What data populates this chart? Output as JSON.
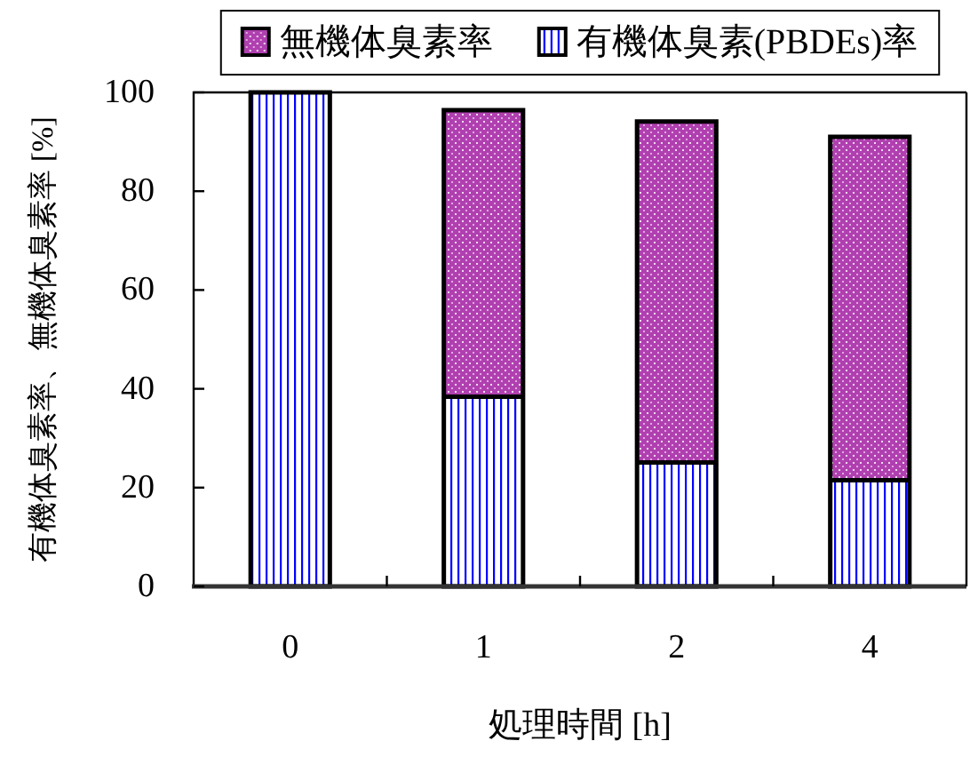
{
  "chart_data": {
    "type": "bar",
    "stacked": true,
    "categories": [
      "0",
      "1",
      "2",
      "4"
    ],
    "xlabel": "処理時間 [h]",
    "ylabel": "有機体臭素率、無機体臭素率 [%]",
    "ylim": [
      0,
      100
    ],
    "yticks": [
      0,
      20,
      40,
      60,
      80,
      100
    ],
    "series": [
      {
        "name": "有機体臭素(PBDEs)率",
        "color": "#0000ff",
        "values": [
          100,
          38.4,
          25.1,
          21.5
        ]
      },
      {
        "name": "無機体臭素率",
        "color": "#b040b0",
        "values": [
          null,
          58,
          69,
          69.5
        ]
      }
    ],
    "legend": "top"
  }
}
